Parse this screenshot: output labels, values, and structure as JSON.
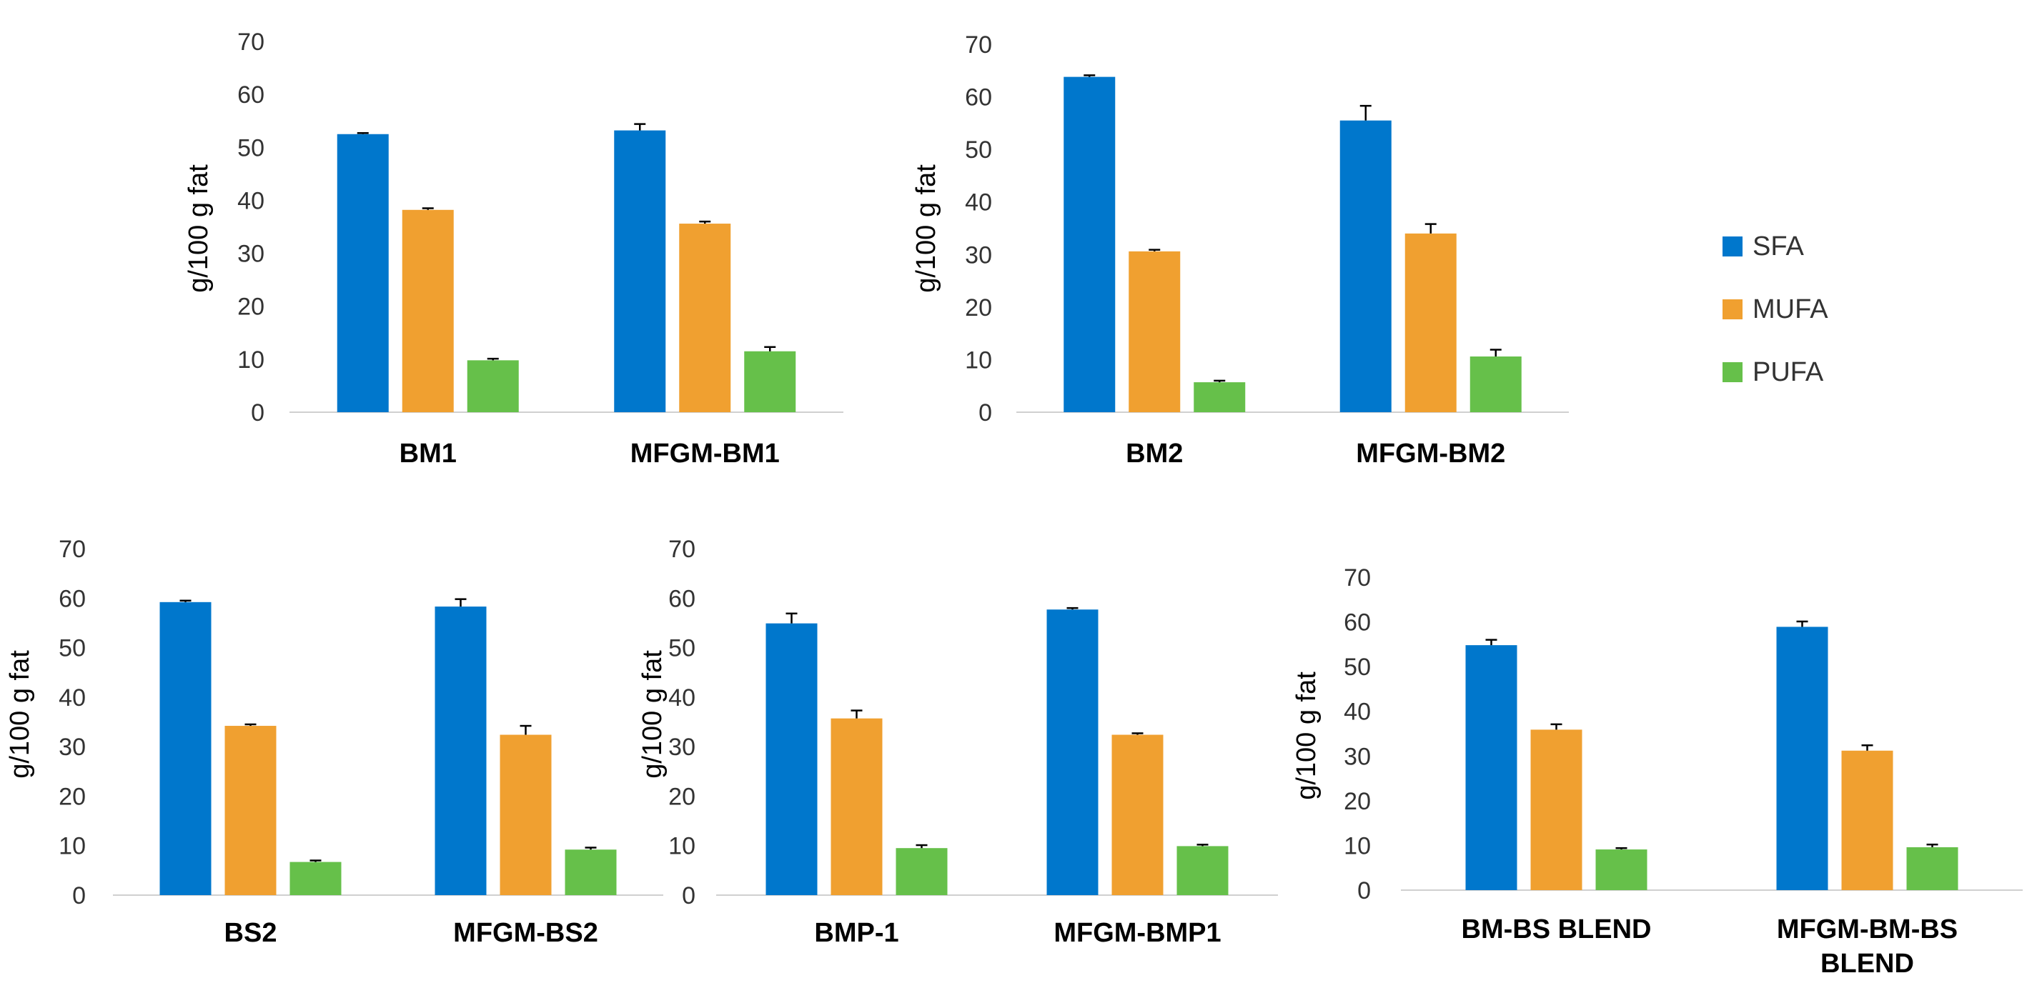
{
  "legend": [
    {
      "name": "SFA",
      "color": "#0077CC"
    },
    {
      "name": "MUFA",
      "color": "#F0A030"
    },
    {
      "name": "PUFA",
      "color": "#66C04A"
    }
  ],
  "chart_data": [
    {
      "type": "bar",
      "categories": [
        "BM1",
        "MFGM-BM1"
      ],
      "series": [
        {
          "name": "SFA",
          "values": [
            52.5,
            53.2
          ],
          "errors": [
            0.2,
            1.2
          ]
        },
        {
          "name": "MUFA",
          "values": [
            38.2,
            35.6
          ],
          "errors": [
            0.3,
            0.4
          ]
        },
        {
          "name": "PUFA",
          "values": [
            9.8,
            11.5
          ],
          "errors": [
            0.3,
            0.8
          ]
        }
      ],
      "ylabel": "g/100 g fat",
      "ylim": [
        0,
        70
      ],
      "yticks": [
        0,
        10,
        20,
        30,
        40,
        50,
        60,
        70
      ],
      "grid": false
    },
    {
      "type": "bar",
      "categories": [
        "BM2",
        "MFGM-BM2"
      ],
      "series": [
        {
          "name": "SFA",
          "values": [
            63.8,
            55.5
          ],
          "errors": [
            0.3,
            2.8
          ]
        },
        {
          "name": "MUFA",
          "values": [
            30.6,
            34.0
          ],
          "errors": [
            0.3,
            1.8
          ]
        },
        {
          "name": "PUFA",
          "values": [
            5.7,
            10.6
          ],
          "errors": [
            0.3,
            1.3
          ]
        }
      ],
      "ylabel": "g/100 g fat",
      "ylim": [
        0,
        70
      ],
      "yticks": [
        0,
        10,
        20,
        30,
        40,
        50,
        60,
        70
      ],
      "grid": false
    },
    {
      "type": "bar",
      "categories": [
        "BS2",
        "MFGM-BS2"
      ],
      "series": [
        {
          "name": "SFA",
          "values": [
            59.2,
            58.3
          ],
          "errors": [
            0.3,
            1.5
          ]
        },
        {
          "name": "MUFA",
          "values": [
            34.2,
            32.4
          ],
          "errors": [
            0.3,
            1.8
          ]
        },
        {
          "name": "PUFA",
          "values": [
            6.7,
            9.2
          ],
          "errors": [
            0.3,
            0.4
          ]
        }
      ],
      "ylabel": "g/100 g fat",
      "ylim": [
        0,
        70
      ],
      "yticks": [
        0,
        10,
        20,
        30,
        40,
        50,
        60,
        70
      ],
      "grid": false
    },
    {
      "type": "bar",
      "categories": [
        "BMP-1",
        "MFGM-BMP1"
      ],
      "series": [
        {
          "name": "SFA",
          "values": [
            54.9,
            57.7
          ],
          "errors": [
            2.0,
            0.3
          ]
        },
        {
          "name": "MUFA",
          "values": [
            35.7,
            32.4
          ],
          "errors": [
            1.6,
            0.3
          ]
        },
        {
          "name": "PUFA",
          "values": [
            9.5,
            9.9
          ],
          "errors": [
            0.6,
            0.3
          ]
        }
      ],
      "ylabel": "g/100 g fat",
      "ylim": [
        0,
        70
      ],
      "yticks": [
        0,
        10,
        20,
        30,
        40,
        50,
        60,
        70
      ],
      "grid": false
    },
    {
      "type": "bar",
      "categories": [
        "BM-BS BLEND",
        "MFGM-BM-BS BLEND"
      ],
      "series": [
        {
          "name": "SFA",
          "values": [
            54.8,
            58.9
          ],
          "errors": [
            1.2,
            1.2
          ]
        },
        {
          "name": "MUFA",
          "values": [
            35.9,
            31.2
          ],
          "errors": [
            1.2,
            1.2
          ]
        },
        {
          "name": "PUFA",
          "values": [
            9.1,
            9.6
          ],
          "errors": [
            0.3,
            0.6
          ]
        }
      ],
      "ylabel": "g/100 g fat",
      "ylim": [
        0,
        70
      ],
      "yticks": [
        0,
        10,
        20,
        30,
        40,
        50,
        60,
        70
      ],
      "grid": false
    }
  ]
}
